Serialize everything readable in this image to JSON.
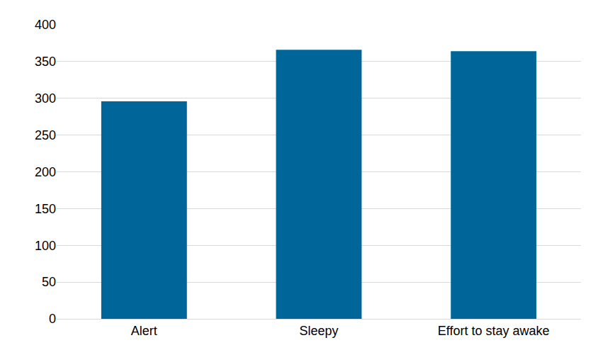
{
  "chart_data": {
    "type": "bar",
    "categories": [
      "Alert",
      "Sleepy",
      "Effort to stay awake"
    ],
    "values": [
      296,
      366,
      364
    ],
    "color": "#00669a",
    "ylim": [
      0,
      400
    ],
    "yticks": [
      0,
      50,
      100,
      150,
      200,
      250,
      300,
      350,
      400
    ],
    "grid": true
  }
}
